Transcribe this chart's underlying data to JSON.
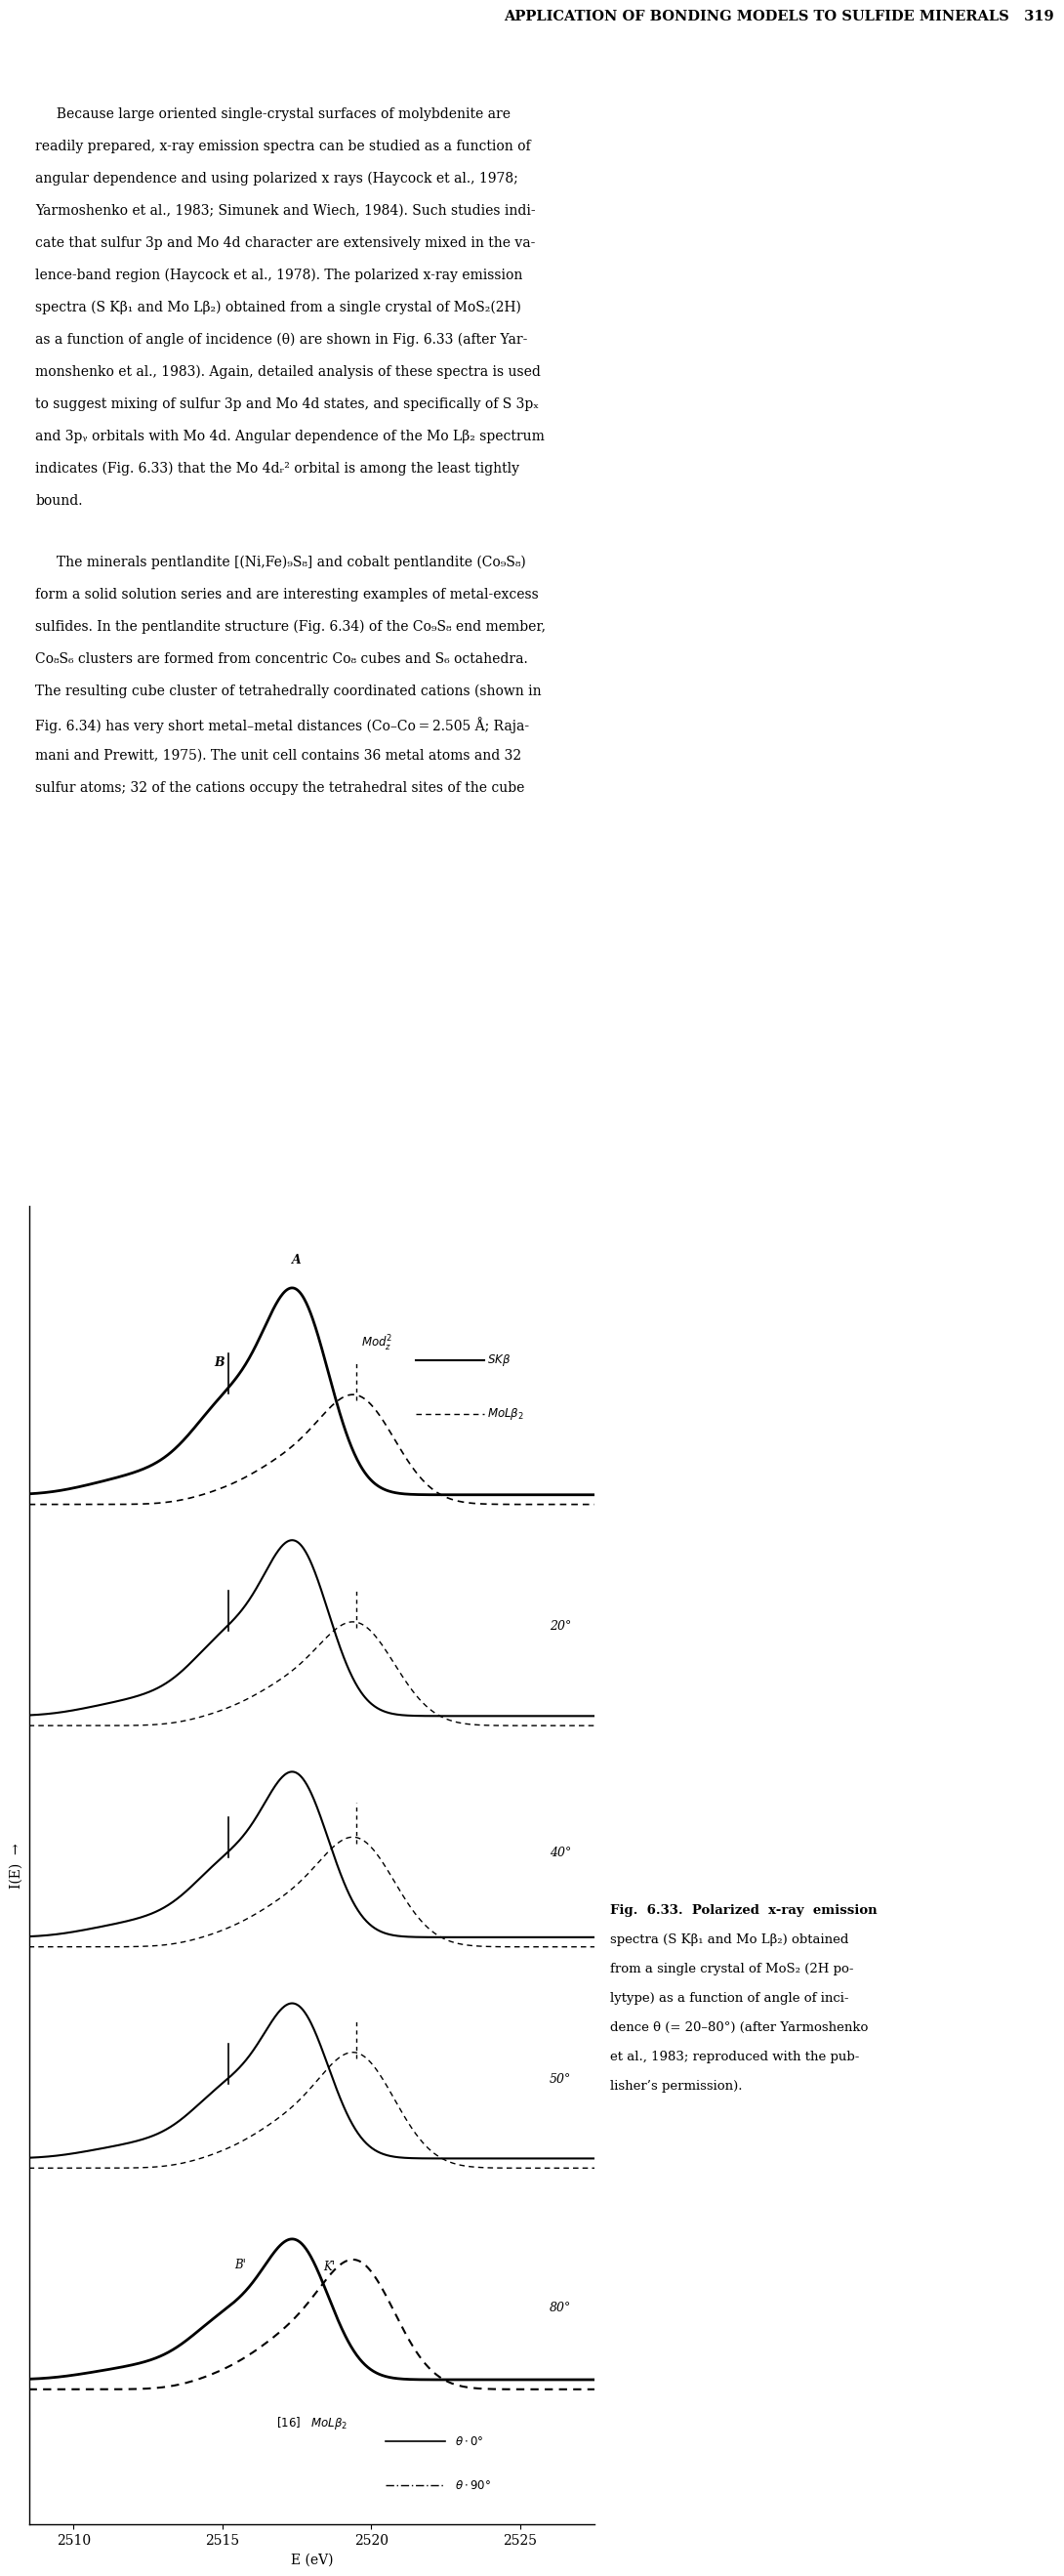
{
  "page_title": "APPLICATION OF BONDING MODELS TO SULFIDE MINERALS   319",
  "para1_lines": [
    "     Because large oriented single-crystal surfaces of molybdenite are",
    "readily prepared, x-ray emission spectra can be studied as a function of",
    "angular dependence and using polarized x rays (Haycock et al., 1978;",
    "Yarmoshenko et al., 1983; Simunek and Wiech, 1984). Such studies indi-",
    "cate that sulfur 3p and Mo 4d character are extensively mixed in the va-",
    "lence-band region (Haycock et al., 1978). The polarized x-ray emission",
    "spectra (S Kβ₁ and Mo Lβ₂) obtained from a single crystal of MoS₂(2H)",
    "as a function of angle of incidence (θ) are shown in Fig. 6.33 (after Yar-",
    "monshenko et al., 1983). Again, detailed analysis of these spectra is used",
    "to suggest mixing of sulfur 3p and Mo 4d states, and specifically of S 3pₓ",
    "and 3pᵧ orbitals with Mo 4d. Angular dependence of the Mo Lβ₂ spectrum",
    "indicates (Fig. 6.33) that the Mo 4dᵣ² orbital is among the least tightly",
    "bound."
  ],
  "para2_lines": [
    "     The minerals pentlandite [(Ni,Fe)₉S₈] and cobalt pentlandite (Co₉S₈)",
    "form a solid solution series and are interesting examples of metal-excess",
    "sulfides. In the pentlandite structure (Fig. 6.34) of the Co₉S₈ end member,",
    "Co₈S₆ clusters are formed from concentric Co₈ cubes and S₆ octahedra.",
    "The resulting cube cluster of tetrahedrally coordinated cations (shown in",
    "Fig. 6.34) has very short metal–metal distances (Co–Co = 2.505 Å; Raja-",
    "mani and Prewitt, 1975). The unit cell contains 36 metal atoms and 32",
    "sulfur atoms; 32 of the cations occupy the tetrahedral sites of the cube"
  ],
  "fig_caption_lines": [
    "Fig.  6.33.  Polarized  x-ray  emission",
    "spectra (S Kβ₁ and Mo Lβ₂) obtained",
    "from a single crystal of MoS₂ (2H po-",
    "lytype) as a function of angle of inci-",
    "dence θ (= 20–80°) (after Yarmoshenko",
    "et al., 1983; reproduced with the pub-",
    "lisher’s permission)."
  ],
  "x_min": 2508.5,
  "x_max": 2527.5,
  "x_ticks": [
    2510,
    2515,
    2520,
    2525
  ],
  "x_label": "E (eV)",
  "background_color": "#ffffff"
}
